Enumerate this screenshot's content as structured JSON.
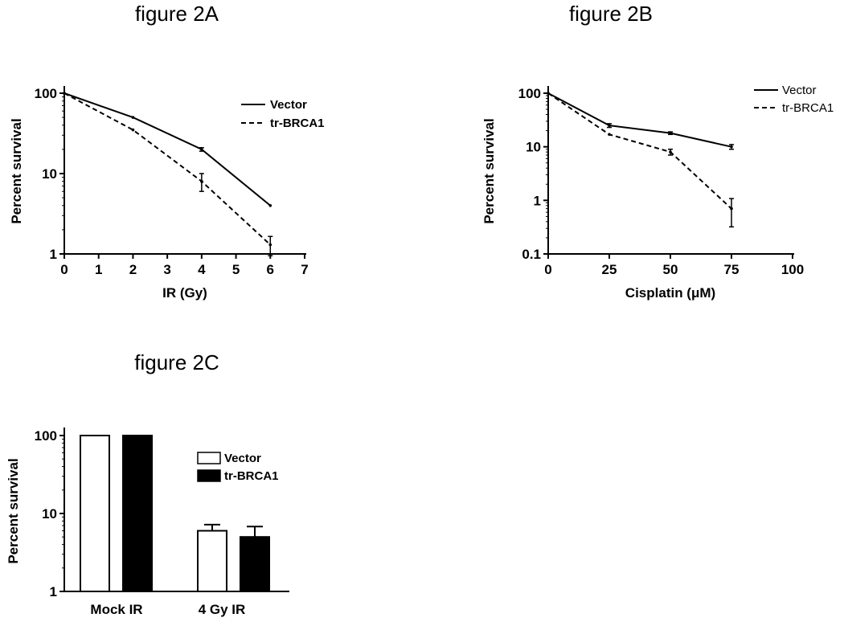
{
  "chart_data": [
    {
      "id": "A",
      "type": "line",
      "title": "figure 2A",
      "xlabel": "IR (Gy)",
      "ylabel": "Percent survival",
      "yscale": "log",
      "xlim": [
        0,
        7
      ],
      "ylim": [
        1,
        100
      ],
      "xticks": [
        "0",
        "1",
        "2",
        "3",
        "4",
        "5",
        "6",
        "7"
      ],
      "yticks": [
        "1",
        "10",
        "100"
      ],
      "legend_position": "top-right",
      "series": [
        {
          "name": "Vector",
          "style": "solid",
          "x": [
            0,
            2,
            4,
            6
          ],
          "y": [
            100,
            50,
            20,
            4
          ],
          "err": [
            0,
            0,
            1,
            0
          ]
        },
        {
          "name": "tr-BRCA1",
          "style": "dashed",
          "x": [
            0,
            2,
            4,
            6
          ],
          "y": [
            100,
            35,
            8,
            1.3
          ],
          "err": [
            0,
            0,
            2,
            0.35
          ]
        }
      ]
    },
    {
      "id": "B",
      "type": "line",
      "title": "figure 2B",
      "xlabel": "Cisplatin (μM)",
      "ylabel": "Percent survival",
      "yscale": "log",
      "xlim": [
        0,
        100
      ],
      "ylim": [
        0.1,
        100
      ],
      "xticks": [
        "0",
        "25",
        "50",
        "75",
        "100"
      ],
      "yticks": [
        "0.1",
        "1",
        "10",
        "100"
      ],
      "legend_position": "top-right",
      "series": [
        {
          "name": "Vector",
          "style": "solid",
          "x": [
            0,
            25,
            50,
            75
          ],
          "y": [
            100,
            25,
            18,
            10
          ],
          "err": [
            0,
            2,
            1,
            1
          ]
        },
        {
          "name": "tr-BRCA1",
          "style": "dashed",
          "x": [
            0,
            25,
            50,
            75
          ],
          "y": [
            100,
            17,
            8,
            0.7
          ],
          "err": [
            0,
            0,
            1,
            0.38
          ]
        }
      ]
    },
    {
      "id": "C",
      "type": "bar",
      "title": "figure 2C",
      "xlabel": "",
      "ylabel": "Percent survival",
      "yscale": "log",
      "ylim": [
        1,
        100
      ],
      "yticks": [
        "1",
        "10",
        "100"
      ],
      "categories": [
        "Mock IR",
        "4 Gy IR"
      ],
      "legend_position": "right",
      "series": [
        {
          "name": "Vector",
          "fill": "#ffffff",
          "values": [
            100,
            6
          ],
          "err": [
            0,
            1.2
          ]
        },
        {
          "name": "tr-BRCA1",
          "fill": "#000000",
          "values": [
            100,
            5
          ],
          "err": [
            0,
            1.8
          ]
        }
      ]
    }
  ]
}
